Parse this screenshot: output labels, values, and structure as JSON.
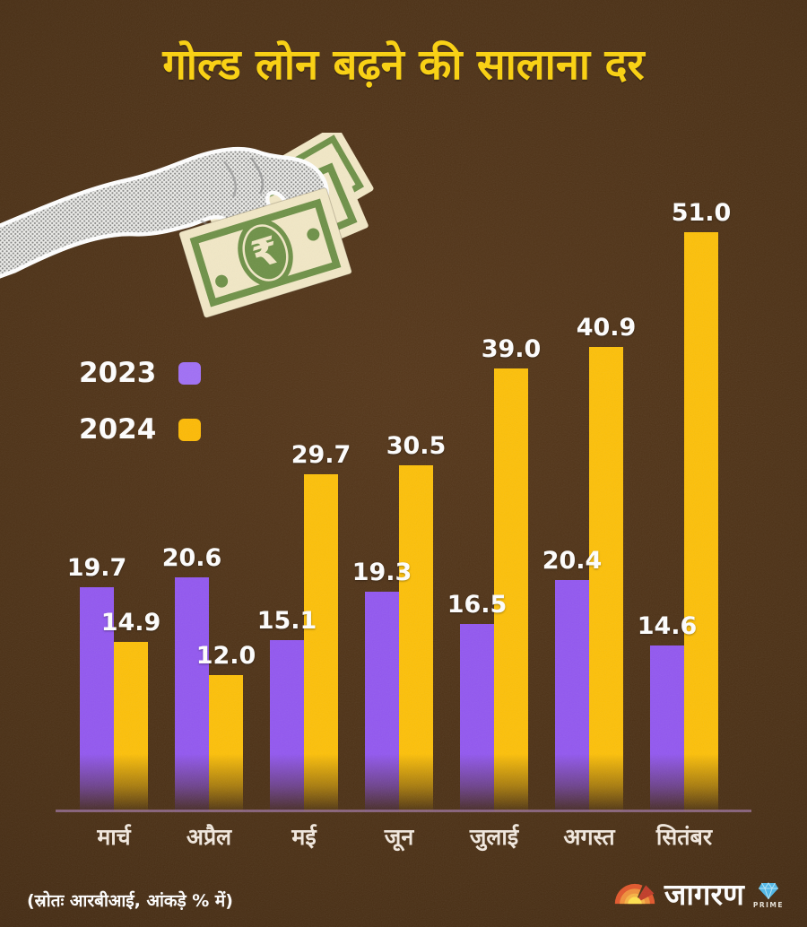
{
  "title": "गोल्ड लोन बढ़ने की सालाना दर",
  "legend": {
    "items": [
      {
        "label": "2023",
        "color": "#a06ff5"
      },
      {
        "label": "2024",
        "color": "#fdba04"
      }
    ]
  },
  "chart_data": {
    "type": "bar",
    "title": "गोल्ड लोन बढ़ने की सालाना दर",
    "categories": [
      "मार्च",
      "अप्रैल",
      "मई",
      "जून",
      "जुलाई",
      "अगस्त",
      "सितंबर"
    ],
    "series": [
      {
        "name": "2023",
        "color": "#9257f0",
        "values": [
          19.7,
          20.6,
          15.1,
          19.3,
          16.5,
          20.4,
          14.6
        ]
      },
      {
        "name": "2024",
        "color": "#fdc008",
        "values": [
          14.9,
          12.0,
          29.7,
          30.5,
          39.0,
          40.9,
          51.0
        ]
      }
    ],
    "xlabel": "",
    "ylabel": "",
    "ylim": [
      0,
      55
    ],
    "grid": false,
    "legend_position": "upper-left",
    "value_labels": true,
    "value_label_decimals": 1
  },
  "footer": {
    "source": "(स्रोतः आरबीआई, आंकड़े % में)"
  },
  "brand": {
    "name": "जागरण",
    "sub": "PRIME"
  },
  "colors": {
    "background": "#4a2f14",
    "title": "#fcd20d",
    "text": "#ffffff",
    "bar_2023": "#9257f0",
    "bar_2024": "#fdc008",
    "axis_line": "#b98ccd",
    "note_paper": "#f2e8c6",
    "note_green": "#6e9147"
  }
}
